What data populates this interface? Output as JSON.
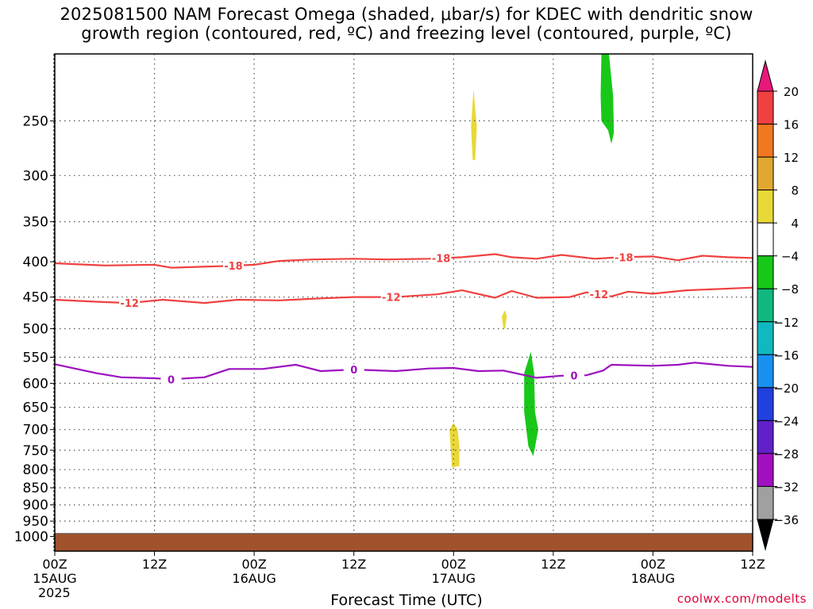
{
  "chart_data": {
    "type": "heatmap",
    "title_lines": [
      "2025081500 NAM Forecast Omega (shaded, μbar/s) for KDEC with dendritic snow",
      "growth region (contoured, red, ºC) and freezing level (contoured, purple, ºC)"
    ],
    "xlabel": "Forecast Time (UTC)",
    "x_ticks": [
      {
        "label": "00Z",
        "sub": "15AUG"
      },
      {
        "label": "12Z",
        "sub": ""
      },
      {
        "label": "00Z",
        "sub": "16AUG"
      },
      {
        "label": "12Z",
        "sub": ""
      },
      {
        "label": "00Z",
        "sub": "17AUG"
      },
      {
        "label": "12Z",
        "sub": ""
      },
      {
        "label": "00Z",
        "sub": "18AUG"
      },
      {
        "label": "12Z",
        "sub": ""
      }
    ],
    "year_label": "2025",
    "xlim_hours": [
      0,
      84
    ],
    "ylabel": "",
    "y_ticks": [
      250,
      300,
      350,
      400,
      450,
      500,
      550,
      600,
      650,
      700,
      750,
      800,
      850,
      900,
      950,
      1000
    ],
    "ylim_hpa": [
      200,
      1050
    ],
    "y_scale": "log-pressure",
    "grid": true,
    "colorbar": {
      "levels": [
        20,
        16,
        12,
        8,
        4,
        -4,
        -8,
        -12,
        -16,
        -20,
        -24,
        -28,
        -32,
        -36
      ],
      "colors_top_to_bottom": [
        "#e8187a",
        "#f04040",
        "#f07820",
        "#e0a830",
        "#e8d838",
        "#ffffff",
        "#18c818",
        "#10b880",
        "#10b8c0",
        "#1890f0",
        "#2040e0",
        "#6020c8",
        "#a010c0",
        "#a0a0a0",
        "#000000"
      ]
    },
    "contours": [
      {
        "name": "-18",
        "color": "#f04040",
        "label_positions_hours": [
          21.5,
          46.5,
          68.5
        ],
        "points": [
          [
            0,
            402
          ],
          [
            6,
            405
          ],
          [
            12,
            404
          ],
          [
            14,
            408
          ],
          [
            17,
            407
          ],
          [
            20,
            406
          ],
          [
            24,
            404
          ],
          [
            27,
            399
          ],
          [
            31,
            397
          ],
          [
            36,
            396
          ],
          [
            40,
            397
          ],
          [
            45,
            396
          ],
          [
            49,
            394
          ],
          [
            53,
            390
          ],
          [
            55,
            394
          ],
          [
            58,
            396
          ],
          [
            61,
            391
          ],
          [
            65,
            396
          ],
          [
            68,
            394
          ],
          [
            72,
            393
          ],
          [
            75,
            398
          ],
          [
            78,
            392
          ],
          [
            81,
            394
          ],
          [
            84,
            395
          ]
        ]
      },
      {
        "name": "-12",
        "color": "#f04040",
        "label_positions_hours": [
          9,
          40.5,
          65.5
        ],
        "points": [
          [
            0,
            454
          ],
          [
            5,
            457
          ],
          [
            9,
            459
          ],
          [
            13,
            454
          ],
          [
            18,
            459
          ],
          [
            22,
            454
          ],
          [
            27,
            455
          ],
          [
            32,
            452
          ],
          [
            36,
            450
          ],
          [
            41,
            450
          ],
          [
            46,
            446
          ],
          [
            49,
            440
          ],
          [
            53,
            451
          ],
          [
            55,
            441
          ],
          [
            58,
            451
          ],
          [
            62,
            450
          ],
          [
            64,
            443
          ],
          [
            67,
            449
          ],
          [
            69,
            442
          ],
          [
            72,
            445
          ],
          [
            76,
            440
          ],
          [
            84,
            436
          ]
        ]
      },
      {
        "name": "0",
        "color": "#9c10c0",
        "label_positions_hours": [
          14,
          36,
          62.5
        ],
        "points": [
          [
            0,
            563
          ],
          [
            5,
            580
          ],
          [
            8,
            588
          ],
          [
            12,
            590
          ],
          [
            14,
            592
          ],
          [
            18,
            588
          ],
          [
            21,
            572
          ],
          [
            25,
            572
          ],
          [
            29,
            564
          ],
          [
            32,
            576
          ],
          [
            36,
            573
          ],
          [
            41,
            576
          ],
          [
            45,
            571
          ],
          [
            48,
            570
          ],
          [
            51,
            576
          ],
          [
            54,
            575
          ],
          [
            58,
            589
          ],
          [
            61,
            585
          ],
          [
            64,
            584
          ],
          [
            66,
            575
          ],
          [
            67,
            564
          ],
          [
            72,
            566
          ],
          [
            75,
            564
          ],
          [
            77,
            560
          ],
          [
            81,
            566
          ],
          [
            84,
            568
          ]
        ]
      }
    ],
    "shaded_regions": [
      {
        "value_bin": "4 to 8",
        "color": "#e8d838",
        "polygon": [
          [
            50.1,
            255
          ],
          [
            50.4,
            225
          ],
          [
            50.8,
            255
          ],
          [
            50.6,
            285
          ],
          [
            50.3,
            285
          ]
        ]
      },
      {
        "value_bin": "4 to 8",
        "color": "#e8d838",
        "polygon": [
          [
            53.8,
            480
          ],
          [
            54.2,
            470
          ],
          [
            54.4,
            480
          ],
          [
            54.2,
            500
          ],
          [
            54,
            500
          ]
        ]
      },
      {
        "value_bin": "4 to 8",
        "color": "#e8d838",
        "polygon": [
          [
            47.5,
            700
          ],
          [
            48,
            685
          ],
          [
            48.5,
            700
          ],
          [
            48.7,
            740
          ],
          [
            48.7,
            790
          ],
          [
            47.8,
            795
          ],
          [
            47.7,
            760
          ]
        ]
      },
      {
        "value_bin": "-8 to -4",
        "color": "#18c818",
        "polygon": [
          [
            56.5,
            580
          ],
          [
            57.3,
            540
          ],
          [
            57.7,
            580
          ],
          [
            57.8,
            660
          ],
          [
            58.2,
            700
          ],
          [
            57.6,
            765
          ],
          [
            57,
            740
          ],
          [
            56.5,
            660
          ]
        ]
      },
      {
        "value_bin": "-8 to -4",
        "color": "#18c818",
        "polygon": [
          [
            65.8,
            200
          ],
          [
            66.7,
            200
          ],
          [
            67.2,
            230
          ],
          [
            67.3,
            260
          ],
          [
            67,
            270
          ],
          [
            66.6,
            258
          ],
          [
            65.8,
            250
          ],
          [
            65.7,
            230
          ]
        ]
      }
    ],
    "terrain": {
      "color": "#a0522d",
      "top_hpa": 990
    }
  },
  "credit": "coolwx.com/modelts"
}
